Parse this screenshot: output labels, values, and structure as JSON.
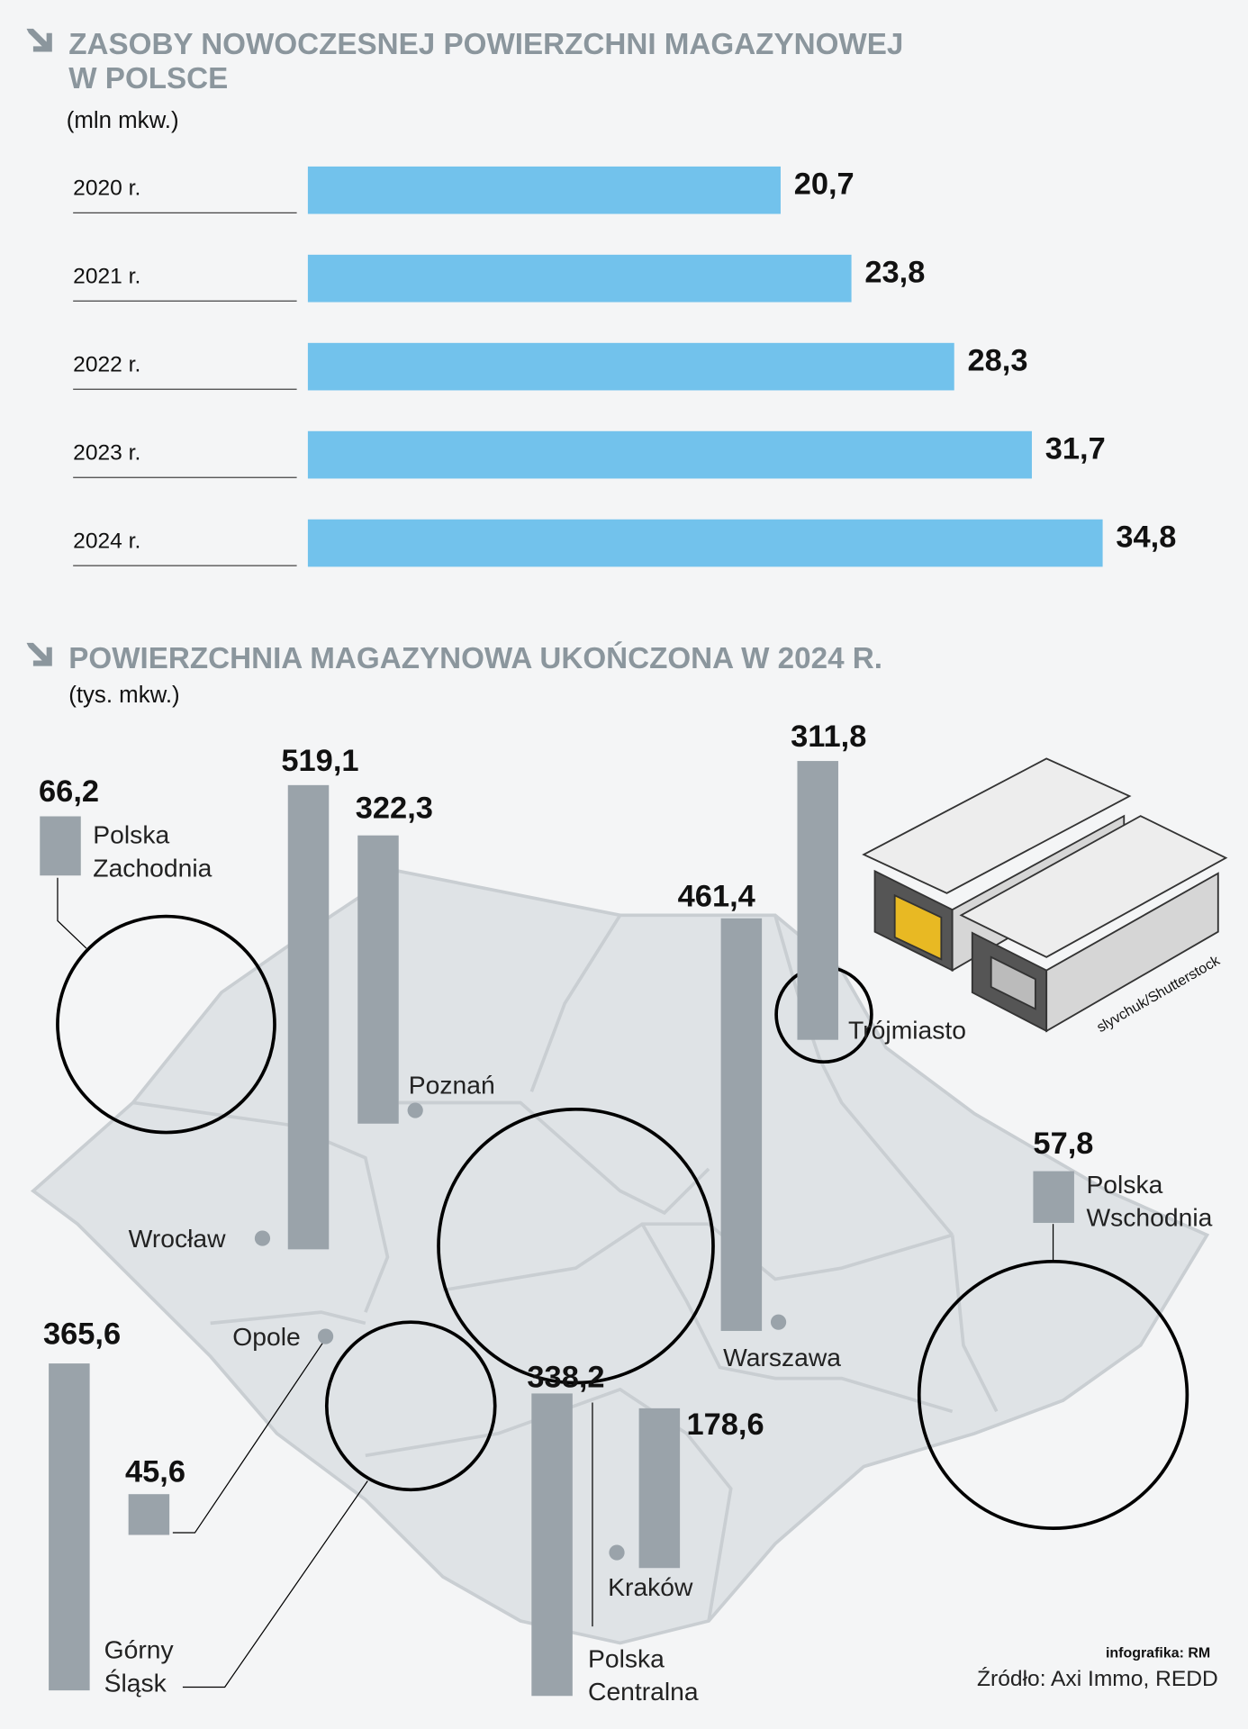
{
  "chart_data": [
    {
      "type": "bar",
      "orientation": "horizontal",
      "title": "ZASOBY NOWOCZESNEJ POWIERZCHNI MAGAZYNOWEJ W POLSCE",
      "subtitle": "(mln mkw.)",
      "categories": [
        "2020 r.",
        "2021 r.",
        "2022 r.",
        "2023 r.",
        "2024 r."
      ],
      "values": [
        20.7,
        23.8,
        28.3,
        31.7,
        34.8
      ],
      "value_labels": [
        "20,7",
        "23,8",
        "28,3",
        "31,7",
        "34,8"
      ],
      "color": "#72c2ec",
      "xlim": [
        0,
        40
      ]
    },
    {
      "type": "map-bar",
      "title": "POWIERZCHNIA MAGAZYNOWA UKOŃCZONA W 2024 R.",
      "subtitle": "(tys. mkw.)",
      "categories": [
        "Polska Zachodnia",
        "Wrocław",
        "Poznań",
        "Trójmiasto",
        "Warszawa",
        "Polska Wschodnia",
        "Górny Śląsk",
        "Opole",
        "Polska Centralna",
        "Kraków"
      ],
      "values": [
        66.2,
        519.1,
        322.3,
        311.8,
        461.4,
        57.8,
        365.6,
        45.6,
        338.2,
        178.6
      ],
      "value_labels": [
        "66,2",
        "519,1",
        "322,3",
        "311,8",
        "461,4",
        "57,8",
        "365,6",
        "45,6",
        "338,2",
        "178,6"
      ],
      "color": "#9aa3aa",
      "ylim": [
        0,
        600
      ],
      "photo_credit": "slyvchuk/Shutterstock",
      "note": "infografika: RM",
      "source": "Źródło: Axi Immo, REDD"
    }
  ]
}
